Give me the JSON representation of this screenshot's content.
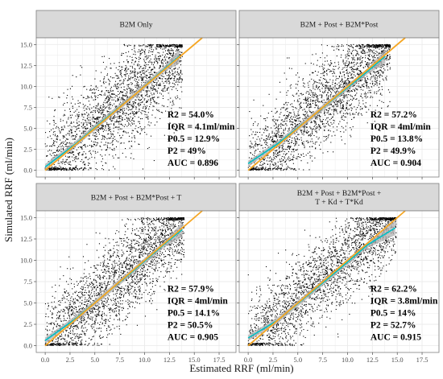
{
  "figure": {
    "xlabel": "Estimated RRF (ml/min)",
    "ylabel": "Simulated RRF (ml/min)"
  },
  "colors": {
    "points": "#000000",
    "identity_line": "#f5a623",
    "smooth_line": "#00bfc4",
    "ribbon": "#b0b0b0",
    "strip_bg": "#d9d9d9",
    "panel_border": "#7f7f7f",
    "grid": "#ebebeb"
  },
  "chart_data": [
    {
      "type": "scatter",
      "title": "B2M Only",
      "xlim": [
        -0.9,
        19.2
      ],
      "ylim": [
        -0.8,
        15.8
      ],
      "xticks": [
        "0.0",
        "2.5",
        "5.0",
        "7.5",
        "10.0",
        "12.5",
        "15.0",
        "17.5"
      ],
      "yticks": [
        "0.0",
        "2.5",
        "5.0",
        "7.5",
        "10.0",
        "12.5",
        "15.0"
      ],
      "identity_line": {
        "slope": 1,
        "intercept": 0
      },
      "smooth": [
        [
          0,
          0.4
        ],
        [
          3,
          3.1
        ],
        [
          6,
          6.1
        ],
        [
          9,
          9.0
        ],
        [
          12,
          12.1
        ],
        [
          13.5,
          13.6
        ]
      ],
      "point_cloud": {
        "approx_n": 2400,
        "x_range": [
          0,
          13.8
        ],
        "y_range": [
          0,
          15
        ],
        "spread": 2.8
      },
      "stats": {
        "r2": "R2 = 54.0%",
        "iqr": "IQR = 4.1ml/min",
        "p05": "P0.5 = 12.9%",
        "p2": "P2 = 49%",
        "auc": "AUC = 0.896"
      }
    },
    {
      "type": "scatter",
      "title": "B2M + Post + B2M*Post",
      "xlim": [
        -0.9,
        19.2
      ],
      "ylim": [
        -0.8,
        15.8
      ],
      "xticks": [
        "0.0",
        "2.5",
        "5.0",
        "7.5",
        "10.0",
        "12.5",
        "15.0",
        "17.5"
      ],
      "yticks": [
        "0.0",
        "2.5",
        "5.0",
        "7.5",
        "10.0",
        "12.5",
        "15.0"
      ],
      "identity_line": {
        "slope": 1,
        "intercept": 0
      },
      "smooth": [
        [
          0,
          0.8
        ],
        [
          3,
          3.2
        ],
        [
          6,
          6.0
        ],
        [
          9,
          8.9
        ],
        [
          12,
          11.8
        ],
        [
          13.8,
          13.6
        ]
      ],
      "point_cloud": {
        "approx_n": 2400,
        "x_range": [
          0,
          14.3
        ],
        "y_range": [
          0,
          15
        ],
        "spread": 2.6
      },
      "stats": {
        "r2": "R2 = 57.2%",
        "iqr": "IQR = 4ml/min",
        "p05": "P0.5 = 13.8%",
        "p2": "P2 = 49.9%",
        "auc": "AUC = 0.904"
      }
    },
    {
      "type": "scatter",
      "title": "B2M + Post + B2M*Post + T",
      "xlim": [
        -0.9,
        19.2
      ],
      "ylim": [
        -0.8,
        15.8
      ],
      "xticks": [
        "0.0",
        "2.5",
        "5.0",
        "7.5",
        "10.0",
        "12.5",
        "15.0",
        "17.5"
      ],
      "yticks": [
        "0.0",
        "2.5",
        "5.0",
        "7.5",
        "10.0",
        "12.5",
        "15.0"
      ],
      "identity_line": {
        "slope": 1,
        "intercept": 0
      },
      "smooth": [
        [
          0,
          0.6
        ],
        [
          3,
          3.1
        ],
        [
          6,
          6.0
        ],
        [
          9,
          8.9
        ],
        [
          12,
          11.9
        ],
        [
          13.8,
          13.6
        ]
      ],
      "point_cloud": {
        "approx_n": 2400,
        "x_range": [
          0,
          14.0
        ],
        "y_range": [
          0,
          15
        ],
        "spread": 2.6
      },
      "stats": {
        "r2": "R2 = 57.9%",
        "iqr": "IQR = 4ml/min",
        "p05": "P0.5 = 14.1%",
        "p2": "P2 = 50.5%",
        "auc": "AUC = 0.905"
      }
    },
    {
      "type": "scatter",
      "title": "B2M + Post + B2M*Post +\nT + Kd + T*Kd",
      "xlim": [
        -0.9,
        19.2
      ],
      "ylim": [
        -0.8,
        15.8
      ],
      "xticks": [
        "0.0",
        "2.5",
        "5.0",
        "7.5",
        "10.0",
        "12.5",
        "15.0",
        "17.5"
      ],
      "yticks": [
        "0.0",
        "2.5",
        "5.0",
        "7.5",
        "10.0",
        "12.5",
        "15.0"
      ],
      "identity_line": {
        "slope": 1,
        "intercept": 0
      },
      "smooth": [
        [
          0,
          0.9
        ],
        [
          3,
          3.0
        ],
        [
          6,
          5.9
        ],
        [
          9,
          8.8
        ],
        [
          12,
          11.8
        ],
        [
          14.8,
          13.8
        ]
      ],
      "point_cloud": {
        "approx_n": 2400,
        "x_range": [
          0,
          14.9
        ],
        "y_range": [
          0,
          15
        ],
        "spread": 2.4
      },
      "stats": {
        "r2": "R2 = 62.2%",
        "iqr": "IQR = 3.8ml/min",
        "p05": "P0.5 = 14%",
        "p2": "P2 = 52.7%",
        "auc": "AUC = 0.915"
      }
    }
  ]
}
